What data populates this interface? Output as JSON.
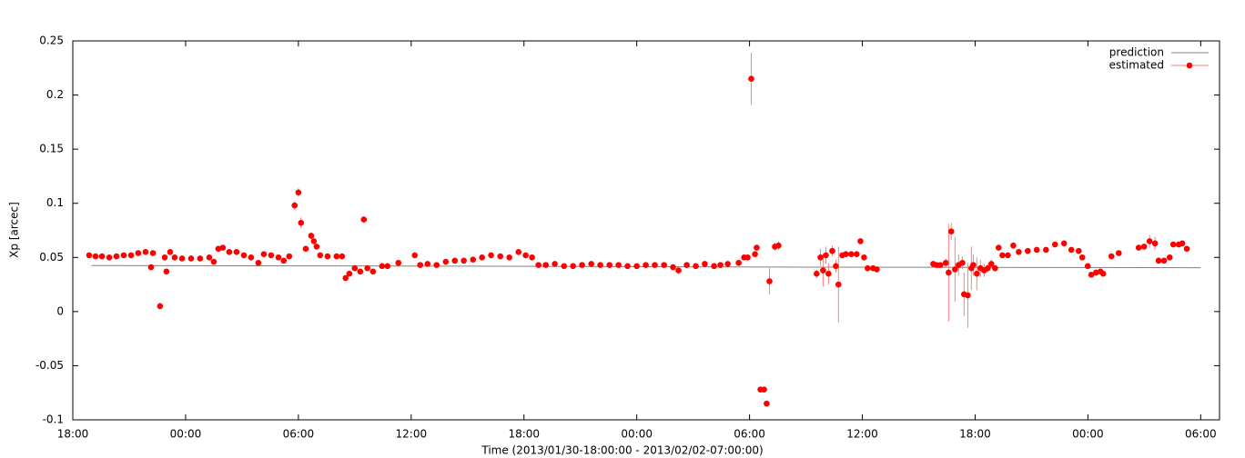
{
  "chart_data": {
    "type": "scatter",
    "xlabel": "Time (2013/01/30-18:00:00 - 2013/02/02-07:00:00)",
    "ylabel": "Xp [arcec]",
    "xlim": [
      0,
      61
    ],
    "xticks": [
      {
        "value": 0,
        "label": "18:00"
      },
      {
        "value": 6,
        "label": "00:00"
      },
      {
        "value": 12,
        "label": "06:00"
      },
      {
        "value": 18,
        "label": "12:00"
      },
      {
        "value": 24,
        "label": "18:00"
      },
      {
        "value": 30,
        "label": "00:00"
      },
      {
        "value": 36,
        "label": "06:00"
      },
      {
        "value": 42,
        "label": "12:00"
      },
      {
        "value": 48,
        "label": "18:00"
      },
      {
        "value": 54,
        "label": "00:00"
      },
      {
        "value": 60,
        "label": "06:00"
      }
    ],
    "ylim": [
      -0.1,
      0.25
    ],
    "yticks": [
      -0.1,
      -0.05,
      0,
      0.05,
      0.1,
      0.15,
      0.2,
      0.25
    ],
    "legend": "top-right",
    "series": [
      {
        "name": "prediction",
        "color": "#808080",
        "style": "line",
        "x": [
          1,
          20,
          40,
          60
        ],
        "values": [
          0.0425,
          0.042,
          0.041,
          0.0405
        ]
      },
      {
        "name": "estimated",
        "color": "#ff0000",
        "style": "points",
        "x": [
          0.87,
          1.21,
          1.55,
          1.94,
          2.32,
          2.71,
          3.1,
          3.48,
          3.87,
          4.16,
          4.26,
          4.64,
          4.89,
          4.98,
          5.18,
          5.42,
          5.81,
          6.29,
          6.77,
          7.26,
          7.5,
          7.74,
          7.98,
          8.32,
          8.71,
          9.1,
          9.48,
          9.87,
          10.16,
          10.55,
          10.94,
          11.22,
          11.51,
          11.8,
          12.0,
          12.14,
          12.39,
          12.68,
          12.82,
          12.97,
          13.16,
          13.55,
          14.03,
          14.32,
          14.51,
          14.71,
          15.0,
          15.29,
          15.48,
          15.67,
          15.97,
          16.45,
          16.74,
          17.32,
          18.19,
          18.48,
          18.87,
          19.35,
          19.84,
          20.32,
          20.8,
          21.29,
          21.77,
          22.25,
          22.74,
          23.22,
          23.71,
          24.09,
          24.43,
          24.77,
          25.16,
          25.64,
          26.13,
          26.61,
          27.09,
          27.58,
          28.06,
          28.55,
          29.03,
          29.51,
          30.0,
          30.48,
          30.96,
          31.45,
          31.93,
          32.22,
          32.66,
          33.14,
          33.62,
          34.11,
          34.45,
          34.84,
          35.42,
          35.71,
          35.9,
          36.09,
          36.29,
          36.38,
          36.58,
          36.77,
          36.91,
          37.06,
          37.35,
          37.54,
          39.57,
          39.77,
          39.91,
          40.06,
          40.2,
          40.4,
          40.59,
          40.73,
          40.93,
          41.12,
          41.41,
          41.7,
          41.9,
          42.09,
          42.28,
          42.57,
          42.77,
          45.77,
          45.96,
          46.15,
          46.44,
          46.59,
          46.73,
          46.93,
          47.12,
          47.32,
          47.41,
          47.61,
          47.8,
          47.9,
          48.09,
          48.28,
          48.48,
          48.67,
          48.86,
          49.06,
          49.25,
          49.45,
          49.74,
          50.03,
          50.32,
          50.8,
          51.28,
          51.77,
          52.25,
          52.73,
          53.12,
          53.51,
          53.7,
          53.99,
          54.18,
          54.43,
          54.67,
          54.81,
          55.25,
          55.64,
          56.7,
          56.99,
          57.28,
          57.57,
          57.76,
          58.05,
          58.35,
          58.54,
          58.83,
          59.02,
          59.26
        ],
        "values": [
          0.052,
          0.051,
          0.051,
          0.05,
          0.051,
          0.052,
          0.052,
          0.054,
          0.055,
          0.041,
          0.054,
          0.005,
          0.05,
          0.037,
          0.055,
          0.05,
          0.049,
          0.049,
          0.049,
          0.05,
          0.046,
          0.058,
          0.059,
          0.055,
          0.055,
          0.052,
          0.05,
          0.045,
          0.053,
          0.052,
          0.05,
          0.047,
          0.051,
          0.098,
          0.11,
          0.082,
          0.058,
          0.07,
          0.065,
          0.06,
          0.052,
          0.051,
          0.051,
          0.051,
          0.031,
          0.035,
          0.04,
          0.037,
          0.085,
          0.04,
          0.037,
          0.042,
          0.042,
          0.045,
          0.052,
          0.043,
          0.044,
          0.043,
          0.046,
          0.047,
          0.047,
          0.048,
          0.05,
          0.052,
          0.051,
          0.05,
          0.055,
          0.052,
          0.05,
          0.043,
          0.043,
          0.044,
          0.042,
          0.042,
          0.043,
          0.044,
          0.043,
          0.043,
          0.043,
          0.042,
          0.042,
          0.043,
          0.043,
          0.043,
          0.041,
          0.038,
          0.043,
          0.042,
          0.044,
          0.042,
          0.043,
          0.044,
          0.045,
          0.05,
          0.05,
          0.215,
          0.053,
          0.059,
          -0.072,
          -0.072,
          -0.085,
          0.028,
          0.06,
          0.061,
          0.035,
          0.05,
          0.038,
          0.052,
          0.035,
          0.056,
          0.042,
          0.025,
          0.052,
          0.053,
          0.053,
          0.053,
          0.065,
          0.05,
          0.04,
          0.04,
          0.039,
          0.044,
          0.043,
          0.043,
          0.045,
          0.036,
          0.074,
          0.039,
          0.043,
          0.045,
          0.016,
          0.015,
          0.04,
          0.043,
          0.035,
          0.04,
          0.038,
          0.04,
          0.044,
          0.04,
          0.059,
          0.052,
          0.052,
          0.061,
          0.055,
          0.056,
          0.057,
          0.057,
          0.062,
          0.063,
          0.057,
          0.056,
          0.05,
          0.042,
          0.034,
          0.036,
          0.037,
          0.035,
          0.051,
          0.054,
          0.059,
          0.06,
          0.065,
          0.063,
          0.047,
          0.047,
          0.05,
          0.062,
          0.062,
          0.063,
          0.058
        ],
        "errors": [
          0.002,
          0.002,
          0.002,
          0.002,
          0.002,
          0.002,
          0.002,
          0.002,
          0.002,
          0.002,
          0.002,
          0.003,
          0.002,
          0.002,
          0.002,
          0.002,
          0.002,
          0.002,
          0.002,
          0.002,
          0.002,
          0.002,
          0.002,
          0.002,
          0.002,
          0.002,
          0.002,
          0.002,
          0.002,
          0.002,
          0.002,
          0.002,
          0.002,
          0.004,
          0.004,
          0.005,
          0.002,
          0.003,
          0.002,
          0.002,
          0.002,
          0.002,
          0.002,
          0.002,
          0.002,
          0.002,
          0.002,
          0.002,
          0.003,
          0.002,
          0.002,
          0.002,
          0.002,
          0.002,
          0.002,
          0.002,
          0.002,
          0.002,
          0.002,
          0.002,
          0.002,
          0.002,
          0.002,
          0.002,
          0.002,
          0.002,
          0.002,
          0.002,
          0.002,
          0.002,
          0.002,
          0.002,
          0.002,
          0.002,
          0.002,
          0.002,
          0.002,
          0.002,
          0.002,
          0.002,
          0.002,
          0.002,
          0.002,
          0.002,
          0.002,
          0.004,
          0.002,
          0.002,
          0.002,
          0.002,
          0.002,
          0.002,
          0.002,
          0.002,
          0.002,
          0.024,
          0.002,
          0.002,
          0.002,
          0.002,
          0.002,
          0.012,
          0.004,
          0.004,
          0.004,
          0.008,
          0.015,
          0.008,
          0.01,
          0.005,
          0.006,
          0.035,
          0.002,
          0.002,
          0.002,
          0.002,
          0.002,
          0.002,
          0.002,
          0.002,
          0.002,
          0.002,
          0.002,
          0.002,
          0.004,
          0.045,
          0.008,
          0.03,
          0.01,
          0.006,
          0.02,
          0.03,
          0.02,
          0.01,
          0.015,
          0.008,
          0.006,
          0.004,
          0.004,
          0.003,
          0.002,
          0.002,
          0.002,
          0.003,
          0.002,
          0.002,
          0.002,
          0.002,
          0.002,
          0.002,
          0.002,
          0.002,
          0.002,
          0.002,
          0.002,
          0.002,
          0.002,
          0.002,
          0.002,
          0.002,
          0.002,
          0.002,
          0.006,
          0.006,
          0.003,
          0.002,
          0.002,
          0.002,
          0.002,
          0.002,
          0.002
        ]
      }
    ]
  }
}
